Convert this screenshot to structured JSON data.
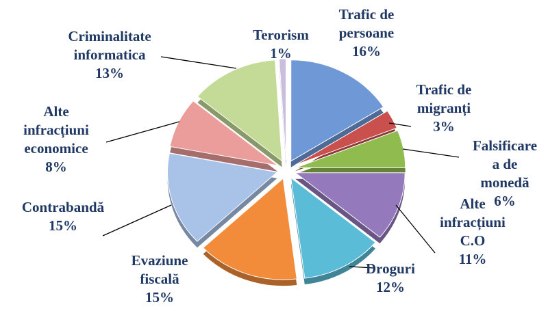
{
  "chart_data": {
    "type": "pie",
    "categories": [
      "Trafic de persoane",
      "Trafic de migranți",
      "Falsificare a de monedă",
      "Alte infracțiuni C.O",
      "Droguri",
      "Evaziune fiscală",
      "Contrabandă",
      "Alte infracțiuni economice",
      "Criminalitate informatica",
      "Terorism"
    ],
    "values": [
      16,
      3,
      6,
      11,
      12,
      15,
      15,
      8,
      13,
      1
    ],
    "value_labels": [
      "16%",
      "3%",
      "6%",
      "11%",
      "12%",
      "15%",
      "15%",
      "8%",
      "13%",
      "1%"
    ],
    "colors": [
      "#6f98d6",
      "#c9504d",
      "#8fbb4f",
      "#9579bd",
      "#5bbcd8",
      "#f38c3a",
      "#a9c2e8",
      "#eb9d9b",
      "#c3db96",
      "#c9bde0"
    ]
  }
}
